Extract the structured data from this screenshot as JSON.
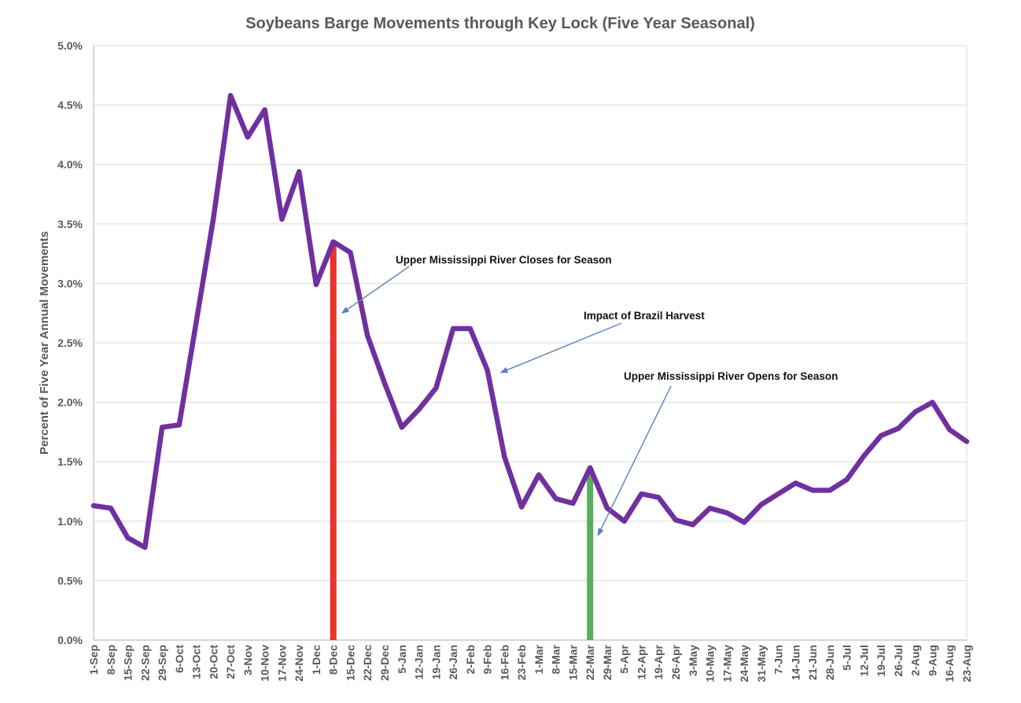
{
  "chart_data": {
    "type": "line",
    "title": "Soybeans Barge Movements through Key Lock (Five Year Seasonal)",
    "xlabel": "",
    "ylabel": "Percent of Five Year Annual Movements",
    "ylim": [
      0,
      5
    ],
    "y_ticks": [
      "0.0%",
      "0.5%",
      "1.0%",
      "1.5%",
      "2.0%",
      "2.5%",
      "3.0%",
      "3.5%",
      "4.0%",
      "4.5%",
      "5.0%"
    ],
    "grid": true,
    "legend": "none",
    "categories": [
      "1-Sep",
      "8-Sep",
      "15-Sep",
      "22-Sep",
      "29-Sep",
      "6-Oct",
      "13-Oct",
      "20-Oct",
      "27-Oct",
      "3-Nov",
      "10-Nov",
      "17-Nov",
      "24-Nov",
      "1-Dec",
      "8-Dec",
      "15-Dec",
      "22-Dec",
      "29-Dec",
      "5-Jan",
      "12-Jan",
      "19-Jan",
      "26-Jan",
      "2-Feb",
      "9-Feb",
      "16-Feb",
      "23-Feb",
      "1-Mar",
      "8-Mar",
      "15-Mar",
      "22-Mar",
      "29-Mar",
      "5-Apr",
      "12-Apr",
      "19-Apr",
      "26-Apr",
      "3-May",
      "10-May",
      "17-May",
      "24-May",
      "31-May",
      "7-Jun",
      "14-Jun",
      "21-Jun",
      "28-Jun",
      "5-Jul",
      "12-Jul",
      "19-Jul",
      "26-Jul",
      "2-Aug",
      "9-Aug",
      "16-Aug",
      "23-Aug"
    ],
    "series": [
      {
        "color": "#7030a0",
        "values": [
          1.13,
          1.11,
          0.86,
          0.78,
          1.79,
          1.81,
          2.68,
          3.55,
          4.58,
          4.23,
          4.46,
          3.54,
          3.94,
          2.99,
          3.35,
          3.26,
          2.56,
          2.16,
          1.79,
          1.94,
          2.12,
          2.62,
          2.62,
          2.27,
          1.54,
          1.12,
          1.39,
          1.19,
          1.15,
          1.45,
          1.11,
          1.0,
          1.23,
          1.2,
          1.01,
          0.97,
          1.11,
          1.07,
          0.99,
          1.14,
          1.23,
          1.32,
          1.26,
          1.26,
          1.35,
          1.55,
          1.72,
          1.78,
          1.92,
          2.0,
          1.77,
          1.67
        ]
      }
    ],
    "markers": [
      {
        "category": "8-Dec",
        "value": 3.35,
        "color": "#e8322b"
      },
      {
        "category": "22-Mar",
        "value": 1.45,
        "color": "#5aad5e"
      }
    ],
    "annotations": [
      {
        "text": "Upper Mississippi River Closes for Season",
        "target_category": "8-Dec",
        "target_value": 2.75
      },
      {
        "text": "Impact of Brazil Harvest",
        "target_category": "9-Feb",
        "target_value": 2.25
      },
      {
        "text": "Upper Mississippi River Opens for Season",
        "target_category": "22-Mar",
        "target_value": 0.88
      }
    ]
  }
}
